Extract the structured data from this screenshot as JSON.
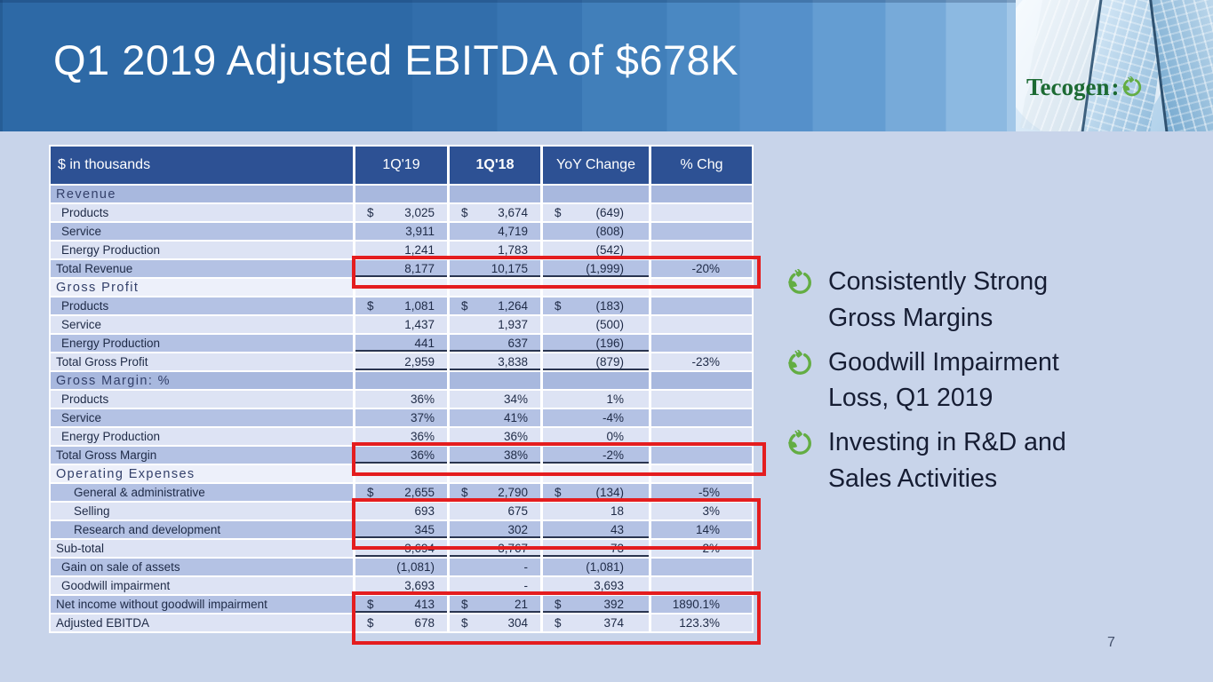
{
  "slide": {
    "title": "Q1 2019 Adjusted EBITDA of $678K",
    "page_number": "7",
    "logo_text": "Tecogen",
    "logo_colon": ":",
    "colors": {
      "accent_red": "#e41d1f",
      "table_header_blue": "#2d5194",
      "row_medium": "#b4c2e4",
      "row_light": "#dde3f4",
      "bullet_green": "#63ad43",
      "banner_blue_left": "#2d69a6",
      "banner_blue_right": "#b6d4ef"
    }
  },
  "table": {
    "columns": [
      "$ in thousands",
      "1Q'19",
      "1Q'18",
      "YoY Change",
      "% Chg"
    ],
    "rows": [
      {
        "label": "Revenue",
        "type": "section"
      },
      {
        "label": "Products",
        "indent": 1,
        "dollar": true,
        "q19": "3,025",
        "q18": "3,674",
        "yoy": "(649)",
        "chg": ""
      },
      {
        "label": "Service",
        "indent": 1,
        "q19": "3,911",
        "q18": "4,719",
        "yoy": "(808)",
        "chg": ""
      },
      {
        "label": "Energy Production",
        "indent": 1,
        "q19": "1,241",
        "q18": "1,783",
        "yoy": "(542)",
        "chg": "",
        "underline": true
      },
      {
        "label": "Total Revenue",
        "q19": "8,177",
        "q18": "10,175",
        "yoy": "(1,999)",
        "chg": "-20%",
        "underline": true
      },
      {
        "label": "Gross Profit",
        "type": "section"
      },
      {
        "label": "Products",
        "indent": 1,
        "dollar": true,
        "q19": "1,081",
        "q18": "1,264",
        "yoy": "(183)",
        "chg": ""
      },
      {
        "label": "Service",
        "indent": 1,
        "q19": "1,437",
        "q18": "1,937",
        "yoy": "(500)",
        "chg": ""
      },
      {
        "label": "Energy Production",
        "indent": 1,
        "q19": "441",
        "q18": "637",
        "yoy": "(196)",
        "chg": "",
        "underline": true
      },
      {
        "label": "Total Gross Profit",
        "q19": "2,959",
        "q18": "3,838",
        "yoy": "(879)",
        "chg": "-23%",
        "underline": true
      },
      {
        "label": "Gross Margin: %",
        "type": "section"
      },
      {
        "label": "Products",
        "indent": 1,
        "q19": "36%",
        "q18": "34%",
        "yoy": "1%",
        "chg": ""
      },
      {
        "label": "Service",
        "indent": 1,
        "q19": "37%",
        "q18": "41%",
        "yoy": "-4%",
        "chg": ""
      },
      {
        "label": "Energy Production",
        "indent": 1,
        "q19": "36%",
        "q18": "36%",
        "yoy": "0%",
        "chg": "",
        "underline": true
      },
      {
        "label": "Total Gross Margin",
        "q19": "36%",
        "q18": "38%",
        "yoy": "-2%",
        "chg": "",
        "underline": true
      },
      {
        "label": "Operating Expenses",
        "type": "section"
      },
      {
        "label": "General & administrative",
        "indent": 2,
        "dollar": true,
        "q19": "2,655",
        "q18": "2,790",
        "yoy": "(134)",
        "chg": "-5%"
      },
      {
        "label": "Selling",
        "indent": 2,
        "q19": "693",
        "q18": "675",
        "yoy": "18",
        "chg": "3%"
      },
      {
        "label": "Research and development",
        "indent": 2,
        "q19": "345",
        "q18": "302",
        "yoy": "43",
        "chg": "14%",
        "underline": true
      },
      {
        "label": "Sub-total",
        "q19": "3,694",
        "q18": "3,767",
        "yoy": "-73",
        "chg": "-2%",
        "underline": true
      },
      {
        "label": "Gain on sale of assets",
        "indent": 1,
        "q19": "(1,081)",
        "q18": "-",
        "yoy": "(1,081)",
        "chg": ""
      },
      {
        "label": "Goodwill impairment",
        "indent": 1,
        "q19": "3,693",
        "q18": "-",
        "yoy": "3,693",
        "chg": "",
        "underline": true
      },
      {
        "label": "Net income without goodwill impairment",
        "dollar": true,
        "q19": "413",
        "q18": "21",
        "yoy": "392",
        "chg": "1890.1%",
        "underline": true
      },
      {
        "label": "Adjusted EBITDA",
        "dollar": true,
        "q19": "678",
        "q18": "304",
        "yoy": "374",
        "chg": "123.3%"
      }
    ]
  },
  "bullets": [
    {
      "lines": [
        "Consistently Strong",
        "Gross Margins"
      ]
    },
    {
      "lines": [
        "Goodwill Impairment",
        "Loss, Q1 2019"
      ]
    },
    {
      "lines": [
        "Investing in R&D and",
        "Sales Activities"
      ]
    }
  ]
}
